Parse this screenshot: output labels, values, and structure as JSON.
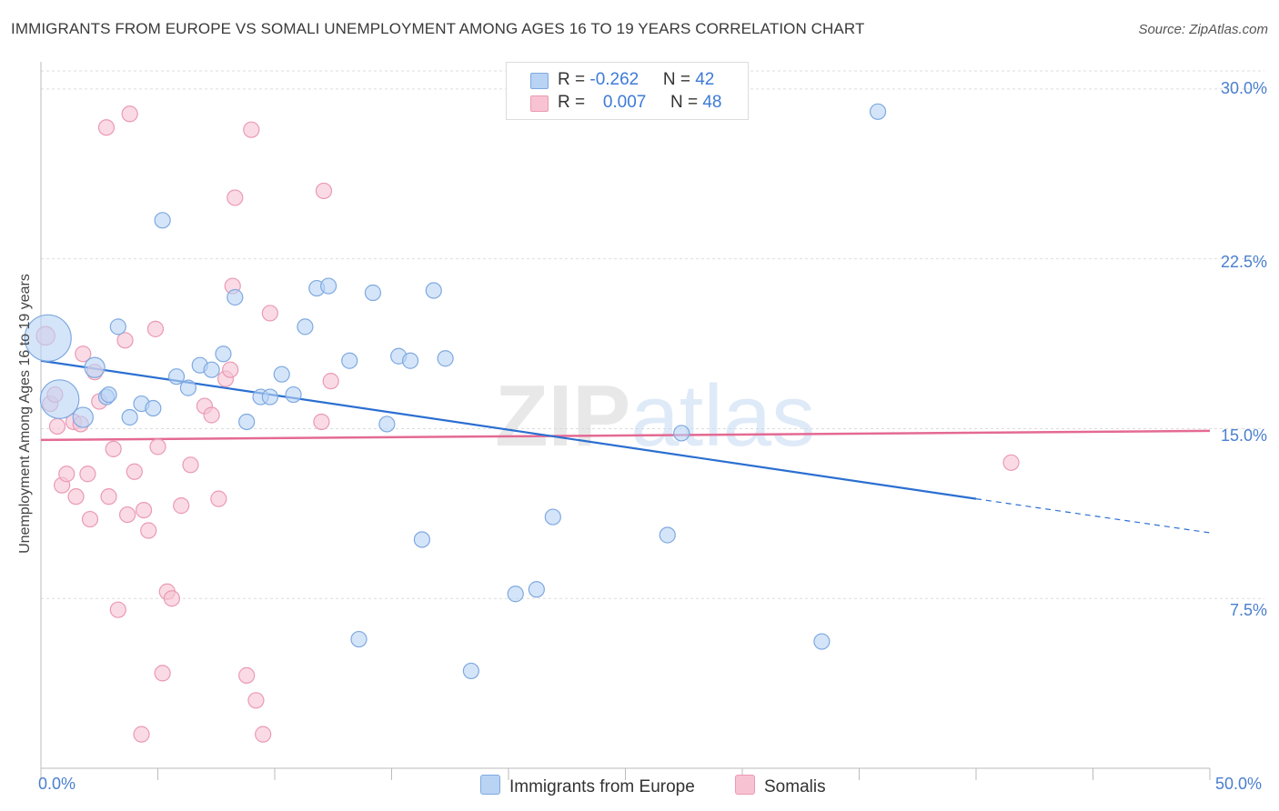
{
  "title": "IMMIGRANTS FROM EUROPE VS SOMALI UNEMPLOYMENT AMONG AGES 16 TO 19 YEARS CORRELATION CHART",
  "source": "Source: ZipAtlas.com",
  "watermark": "ZIPatlas",
  "colors": {
    "blue_fill": "#b9d3f5",
    "blue_stroke": "#7ea9e0",
    "blue_line": "#2b6fd1",
    "pink_fill": "#f7c3d3",
    "pink_stroke": "#eb9ab3",
    "pink_line": "#e46a93",
    "grid": "#dddddd",
    "tick_text": "#4a7fcf"
  },
  "legend": {
    "blue": {
      "r_label": "R = ",
      "r_value": "-0.262",
      "n_label": "N = ",
      "n_value": "42"
    },
    "pink": {
      "r_label": "R = ",
      "r_value": "0.007",
      "n_label": "N = ",
      "n_value": "48"
    }
  },
  "chart_data": {
    "type": "scatter",
    "title": "IMMIGRANTS FROM EUROPE VS SOMALI UNEMPLOYMENT AMONG AGES 16 TO 19 YEARS CORRELATION CHART",
    "xlabel": "",
    "ylabel": "Unemployment Among Ages 16 to 19 years",
    "xlim": [
      0,
      50
    ],
    "ylim": [
      0,
      31.2
    ],
    "x_tick_labels": [
      "0.0%",
      "50.0%"
    ],
    "y_ticks": [
      7.5,
      15.0,
      22.5,
      30.0
    ],
    "y_tick_labels": [
      "7.5%",
      "15.0%",
      "22.5%",
      "30.0%"
    ],
    "series": [
      {
        "name": "Immigrants from Europe",
        "color": "blue",
        "points": [
          {
            "x": 0.3,
            "y": 19.0,
            "s": 3
          },
          {
            "x": 0.8,
            "y": 16.3,
            "s": 2.5
          },
          {
            "x": 1.8,
            "y": 15.5,
            "s": 1.3
          },
          {
            "x": 2.3,
            "y": 17.7,
            "s": 1.3
          },
          {
            "x": 2.8,
            "y": 16.4,
            "s": 1
          },
          {
            "x": 3.3,
            "y": 19.5,
            "s": 1
          },
          {
            "x": 3.8,
            "y": 15.5,
            "s": 1
          },
          {
            "x": 4.3,
            "y": 16.1,
            "s": 1
          },
          {
            "x": 4.8,
            "y": 15.9,
            "s": 1
          },
          {
            "x": 5.2,
            "y": 24.2,
            "s": 1
          },
          {
            "x": 5.8,
            "y": 17.3,
            "s": 1
          },
          {
            "x": 6.3,
            "y": 16.8,
            "s": 1
          },
          {
            "x": 6.8,
            "y": 17.8,
            "s": 1
          },
          {
            "x": 7.3,
            "y": 17.6,
            "s": 1
          },
          {
            "x": 7.8,
            "y": 18.3,
            "s": 1
          },
          {
            "x": 8.3,
            "y": 20.8,
            "s": 1
          },
          {
            "x": 8.8,
            "y": 15.3,
            "s": 1
          },
          {
            "x": 9.4,
            "y": 16.4,
            "s": 1
          },
          {
            "x": 9.8,
            "y": 16.4,
            "s": 1
          },
          {
            "x": 10.3,
            "y": 17.4,
            "s": 1
          },
          {
            "x": 10.8,
            "y": 16.5,
            "s": 1
          },
          {
            "x": 11.3,
            "y": 19.5,
            "s": 1
          },
          {
            "x": 11.8,
            "y": 21.2,
            "s": 1
          },
          {
            "x": 12.3,
            "y": 21.3,
            "s": 1
          },
          {
            "x": 13.2,
            "y": 18.0,
            "s": 1
          },
          {
            "x": 13.6,
            "y": 5.7,
            "s": 1
          },
          {
            "x": 14.2,
            "y": 21.0,
            "s": 1
          },
          {
            "x": 14.8,
            "y": 15.2,
            "s": 1
          },
          {
            "x": 15.3,
            "y": 18.2,
            "s": 1
          },
          {
            "x": 15.8,
            "y": 18.0,
            "s": 1
          },
          {
            "x": 16.3,
            "y": 10.1,
            "s": 1
          },
          {
            "x": 16.8,
            "y": 21.1,
            "s": 1
          },
          {
            "x": 17.3,
            "y": 18.1,
            "s": 1
          },
          {
            "x": 18.4,
            "y": 4.3,
            "s": 1
          },
          {
            "x": 20.3,
            "y": 7.7,
            "s": 1
          },
          {
            "x": 21.2,
            "y": 7.9,
            "s": 1
          },
          {
            "x": 21.9,
            "y": 11.1,
            "s": 1
          },
          {
            "x": 26.8,
            "y": 10.3,
            "s": 1
          },
          {
            "x": 27.4,
            "y": 14.8,
            "s": 1
          },
          {
            "x": 33.4,
            "y": 5.6,
            "s": 1
          },
          {
            "x": 35.8,
            "y": 29.0,
            "s": 1
          },
          {
            "x": 2.9,
            "y": 16.5,
            "s": 1
          }
        ],
        "trend": {
          "x1": 0,
          "y1": 18.0,
          "x2": 40,
          "y2": 11.9,
          "dash_x2": 50,
          "dash_y2": 10.4
        }
      },
      {
        "name": "Somalis",
        "color": "pink",
        "points": [
          {
            "x": 0.2,
            "y": 19.1,
            "s": 1.2
          },
          {
            "x": 0.4,
            "y": 16.1,
            "s": 1
          },
          {
            "x": 0.6,
            "y": 16.5,
            "s": 1
          },
          {
            "x": 0.7,
            "y": 15.1,
            "s": 1
          },
          {
            "x": 0.9,
            "y": 12.5,
            "s": 1
          },
          {
            "x": 1.1,
            "y": 13.0,
            "s": 1
          },
          {
            "x": 1.4,
            "y": 15.3,
            "s": 1
          },
          {
            "x": 1.5,
            "y": 12.0,
            "s": 1
          },
          {
            "x": 1.7,
            "y": 15.2,
            "s": 1
          },
          {
            "x": 1.8,
            "y": 18.3,
            "s": 1
          },
          {
            "x": 2.0,
            "y": 13.0,
            "s": 1
          },
          {
            "x": 2.1,
            "y": 11.0,
            "s": 1
          },
          {
            "x": 2.3,
            "y": 17.5,
            "s": 1
          },
          {
            "x": 2.5,
            "y": 16.2,
            "s": 1
          },
          {
            "x": 2.8,
            "y": 28.3,
            "s": 1
          },
          {
            "x": 2.9,
            "y": 12.0,
            "s": 1
          },
          {
            "x": 3.1,
            "y": 14.1,
            "s": 1
          },
          {
            "x": 3.3,
            "y": 7.0,
            "s": 1
          },
          {
            "x": 3.6,
            "y": 18.9,
            "s": 1
          },
          {
            "x": 3.7,
            "y": 11.2,
            "s": 1
          },
          {
            "x": 3.8,
            "y": 28.9,
            "s": 1
          },
          {
            "x": 4.0,
            "y": 13.1,
            "s": 1
          },
          {
            "x": 4.3,
            "y": 1.5,
            "s": 1
          },
          {
            "x": 4.4,
            "y": 11.4,
            "s": 1
          },
          {
            "x": 4.6,
            "y": 10.5,
            "s": 1
          },
          {
            "x": 4.9,
            "y": 19.4,
            "s": 1
          },
          {
            "x": 5.0,
            "y": 14.2,
            "s": 1
          },
          {
            "x": 5.2,
            "y": 4.2,
            "s": 1
          },
          {
            "x": 5.4,
            "y": 7.8,
            "s": 1
          },
          {
            "x": 5.6,
            "y": 7.5,
            "s": 1
          },
          {
            "x": 6.0,
            "y": 11.6,
            "s": 1
          },
          {
            "x": 6.4,
            "y": 13.4,
            "s": 1
          },
          {
            "x": 7.0,
            "y": 16.0,
            "s": 1
          },
          {
            "x": 7.3,
            "y": 15.6,
            "s": 1
          },
          {
            "x": 7.6,
            "y": 11.9,
            "s": 1
          },
          {
            "x": 7.9,
            "y": 17.2,
            "s": 1
          },
          {
            "x": 8.2,
            "y": 21.3,
            "s": 1
          },
          {
            "x": 8.3,
            "y": 25.2,
            "s": 1
          },
          {
            "x": 8.8,
            "y": 4.1,
            "s": 1
          },
          {
            "x": 9.0,
            "y": 28.2,
            "s": 1
          },
          {
            "x": 9.2,
            "y": 3.0,
            "s": 1
          },
          {
            "x": 9.5,
            "y": 1.5,
            "s": 1
          },
          {
            "x": 9.8,
            "y": 20.1,
            "s": 1
          },
          {
            "x": 12.0,
            "y": 15.3,
            "s": 1
          },
          {
            "x": 12.1,
            "y": 25.5,
            "s": 1
          },
          {
            "x": 12.4,
            "y": 17.1,
            "s": 1
          },
          {
            "x": 41.5,
            "y": 13.5,
            "s": 1
          },
          {
            "x": 8.1,
            "y": 17.6,
            "s": 1
          }
        ],
        "trend": {
          "x1": 0,
          "y1": 14.5,
          "x2": 50,
          "y2": 14.9
        }
      }
    ]
  }
}
